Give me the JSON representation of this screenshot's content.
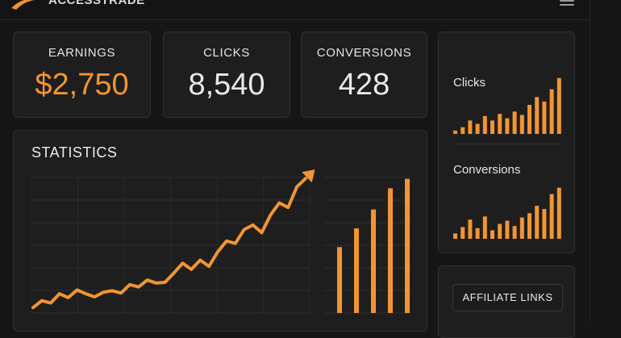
{
  "app": {
    "brand": "ACCESSTRADE"
  },
  "colors": {
    "accent": "#f39433",
    "background": "#161616",
    "card": "#1e1e1f"
  },
  "kpis": [
    {
      "label": "EARNINGS",
      "value": "$2,750"
    },
    {
      "label": "CLICKS",
      "value": "8,540"
    },
    {
      "label": "CONVERSIONS",
      "value": "428"
    }
  ],
  "statistics": {
    "title": "STATISTICS"
  },
  "sidebar": {
    "clicks_label": "Clicks",
    "conversions_label": "Conversions",
    "affiliate_links_label": "AFFILIATE LINKS"
  },
  "chart_data": [
    {
      "type": "line",
      "x": [
        0,
        1,
        2,
        3,
        4,
        5,
        6,
        7,
        8,
        9,
        10,
        11,
        12,
        13,
        14,
        15,
        16,
        17,
        18,
        19,
        20,
        21,
        22,
        23,
        24,
        25,
        26,
        27,
        28,
        29,
        30,
        31
      ],
      "values": [
        5,
        14,
        11,
        23,
        18,
        28,
        23,
        19,
        25,
        27,
        24,
        35,
        32,
        41,
        37,
        38,
        50,
        63,
        55,
        67,
        59,
        78,
        92,
        89,
        107,
        113,
        103,
        126,
        142,
        136,
        163,
        174
      ],
      "ylim": [
        0,
        190
      ],
      "arrow": true
    },
    {
      "type": "bar",
      "values": [
        56,
        72,
        88,
        106,
        114
      ],
      "ylim": [
        0,
        120
      ]
    },
    {
      "type": "bar",
      "series_name": "Clicks",
      "values": [
        3,
        6,
        12,
        9,
        16,
        12,
        18,
        14,
        20,
        17,
        26,
        33,
        29,
        40,
        50
      ],
      "ylim": [
        0,
        52
      ]
    },
    {
      "type": "bar",
      "series_name": "Conversions",
      "values": [
        5,
        11,
        18,
        10,
        21,
        8,
        14,
        17,
        12,
        20,
        24,
        31,
        28,
        42,
        48
      ],
      "ylim": [
        0,
        50
      ]
    }
  ]
}
